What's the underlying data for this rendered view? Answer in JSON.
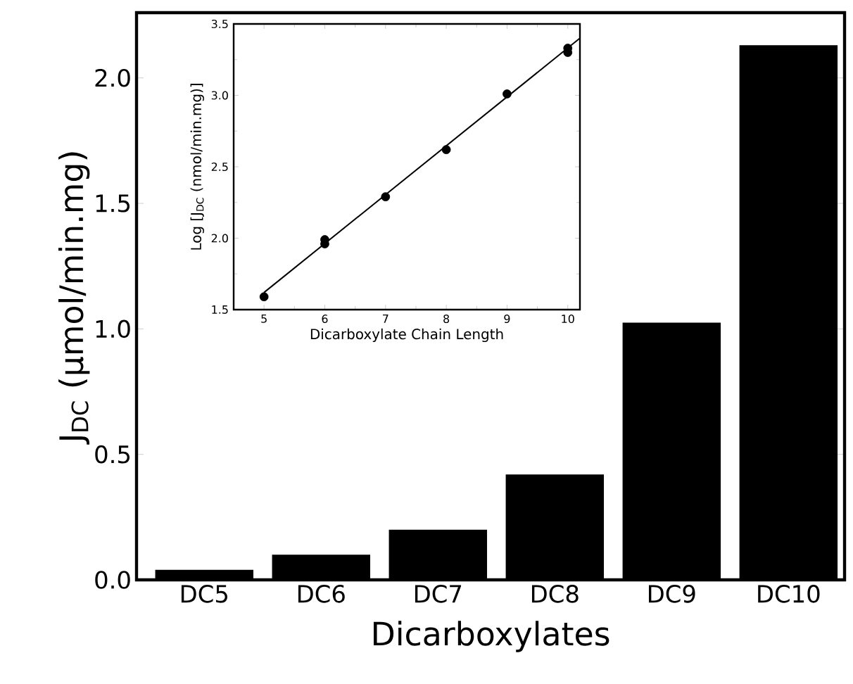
{
  "chart_data": [
    {
      "type": "bar",
      "xlabel": "Dicarboxylates",
      "ylabel": "J$_{DC}$  (µmol/min.mg)",
      "categories": [
        "DC5",
        "DC6",
        "DC7",
        "DC8",
        "DC9",
        "DC10"
      ],
      "values": [
        0.04,
        0.1,
        0.2,
        0.42,
        1.025,
        2.13
      ],
      "color": "#000000",
      "ylim": [
        0,
        2.26
      ],
      "yticks": [
        {
          "value": 0,
          "label": "0.0"
        },
        {
          "value": 0.5,
          "label": "0.5"
        },
        {
          "value": 1,
          "label": "1.0"
        },
        {
          "value": 1.5,
          "label": "1.5"
        },
        {
          "value": 2,
          "label": "2.0"
        }
      ]
    },
    {
      "type": "scatter",
      "xlabel": "Dicarboxylate Chain Length",
      "ylabel": "Log [J$_{DC}$  (nmol/min.mg)]",
      "xlim": [
        4.5,
        10.2
      ],
      "ylim": [
        1.5,
        3.5
      ],
      "xticks": [
        5,
        6,
        7,
        8,
        9,
        10
      ],
      "yticks": [
        {
          "value": 1.5,
          "label": "1.5"
        },
        {
          "value": 2,
          "label": "2.0"
        },
        {
          "value": 2.5,
          "label": "2.5"
        },
        {
          "value": 3,
          "label": "3.0"
        },
        {
          "value": 3.5,
          "label": "3.5"
        }
      ],
      "series": [
        {
          "type": "scatter",
          "color": "#000000",
          "marker": "circle",
          "x": [
            5,
            6,
            6,
            7,
            8,
            9,
            10,
            10
          ],
          "values": [
            1.59,
            1.96,
            1.99,
            2.29,
            2.62,
            3.01,
            3.3,
            3.33
          ]
        },
        {
          "type": "line",
          "color": "#000000",
          "marker": "none",
          "line_style": "solid",
          "x": [
            5,
            10.2
          ],
          "values": [
            1.62,
            3.4
          ]
        }
      ]
    }
  ]
}
